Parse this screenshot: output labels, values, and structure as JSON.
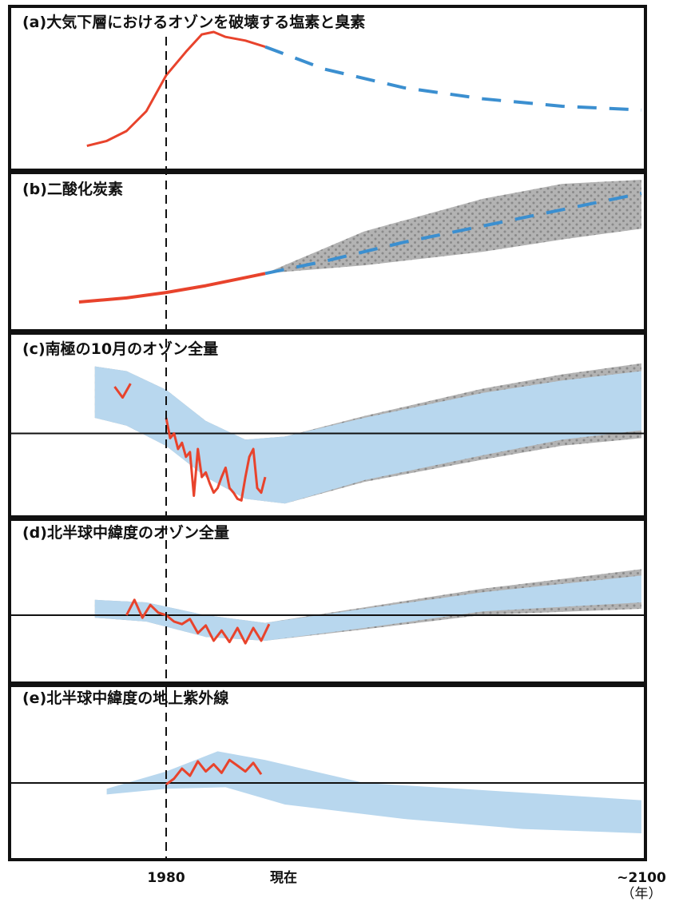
{
  "colors": {
    "observed": "#e8432c",
    "projection": "#3b8fd0",
    "band": "#b8d7ee",
    "uncertainty": "#b3b3b3",
    "uncertainty_dots": "#8a8a8a",
    "frame": "#111111"
  },
  "chart_data": {
    "type": "line",
    "x_markers": {
      "start": "1980",
      "present": "現在",
      "end": "~2100",
      "unit": "（年）"
    },
    "panels": [
      {
        "id": "a",
        "title": "(a)大気下層におけるオゾンを破壊する塩素と臭素",
        "observed": [
          [
            1960,
            0.08
          ],
          [
            1965,
            0.12
          ],
          [
            1970,
            0.2
          ],
          [
            1975,
            0.36
          ],
          [
            1980,
            0.65
          ],
          [
            1985,
            0.84
          ],
          [
            1989,
            0.98
          ],
          [
            1992,
            1.0
          ],
          [
            1995,
            0.96
          ],
          [
            2000,
            0.93
          ],
          [
            2005,
            0.88
          ]
        ],
        "projection": [
          [
            2005,
            0.88
          ],
          [
            2020,
            0.7
          ],
          [
            2040,
            0.55
          ],
          [
            2060,
            0.46
          ],
          [
            2080,
            0.4
          ],
          [
            2100,
            0.37
          ]
        ]
      },
      {
        "id": "b",
        "title": "(b)二酸化炭素",
        "observed": [
          [
            1958,
            0.1
          ],
          [
            1970,
            0.13
          ],
          [
            1980,
            0.17
          ],
          [
            1990,
            0.22
          ],
          [
            2000,
            0.28
          ],
          [
            2005,
            0.31
          ]
        ],
        "projection": [
          [
            2005,
            0.31
          ],
          [
            2020,
            0.4
          ],
          [
            2040,
            0.54
          ],
          [
            2060,
            0.66
          ],
          [
            2080,
            0.78
          ],
          [
            2100,
            0.9
          ]
        ],
        "uncertainty_upper": [
          [
            2005,
            0.31
          ],
          [
            2030,
            0.62
          ],
          [
            2060,
            0.86
          ],
          [
            2080,
            0.97
          ],
          [
            2100,
            1.0
          ]
        ],
        "uncertainty_lower": [
          [
            2005,
            0.31
          ],
          [
            2030,
            0.37
          ],
          [
            2060,
            0.47
          ],
          [
            2080,
            0.56
          ],
          [
            2100,
            0.64
          ]
        ]
      },
      {
        "id": "c",
        "title": "(c)南極の10月のオゾン全量",
        "baseline": 0.5,
        "observed_early": [
          [
            1967,
            0.8
          ],
          [
            1969,
            0.73
          ],
          [
            1971,
            0.82
          ]
        ],
        "observed": [
          [
            1980,
            0.6
          ],
          [
            1981,
            0.47
          ],
          [
            1982,
            0.5
          ],
          [
            1983,
            0.4
          ],
          [
            1984,
            0.44
          ],
          [
            1985,
            0.35
          ],
          [
            1986,
            0.38
          ],
          [
            1987,
            0.1
          ],
          [
            1988,
            0.4
          ],
          [
            1989,
            0.22
          ],
          [
            1990,
            0.25
          ],
          [
            1991,
            0.18
          ],
          [
            1992,
            0.12
          ],
          [
            1993,
            0.15
          ],
          [
            1994,
            0.22
          ],
          [
            1995,
            0.28
          ],
          [
            1996,
            0.15
          ],
          [
            1997,
            0.12
          ],
          [
            1998,
            0.08
          ],
          [
            1999,
            0.07
          ],
          [
            2000,
            0.22
          ],
          [
            2001,
            0.35
          ],
          [
            2002,
            0.4
          ],
          [
            2003,
            0.15
          ],
          [
            2004,
            0.12
          ],
          [
            2005,
            0.22
          ]
        ],
        "band_upper": [
          [
            1962,
            0.93
          ],
          [
            1970,
            0.9
          ],
          [
            1980,
            0.78
          ],
          [
            1990,
            0.58
          ],
          [
            2000,
            0.46
          ],
          [
            2010,
            0.48
          ],
          [
            2030,
            0.6
          ],
          [
            2060,
            0.76
          ],
          [
            2080,
            0.84
          ],
          [
            2100,
            0.9
          ]
        ],
        "band_lower": [
          [
            1962,
            0.6
          ],
          [
            1970,
            0.55
          ],
          [
            1980,
            0.42
          ],
          [
            1990,
            0.22
          ],
          [
            2000,
            0.08
          ],
          [
            2010,
            0.05
          ],
          [
            2030,
            0.2
          ],
          [
            2060,
            0.36
          ],
          [
            2080,
            0.46
          ],
          [
            2100,
            0.52
          ]
        ]
      },
      {
        "id": "d",
        "title": "(d)北半球中緯度のオゾン全量",
        "baseline": 0.5,
        "observed": [
          [
            1970,
            0.5
          ],
          [
            1972,
            0.62
          ],
          [
            1974,
            0.48
          ],
          [
            1976,
            0.58
          ],
          [
            1978,
            0.52
          ],
          [
            1980,
            0.5
          ],
          [
            1982,
            0.45
          ],
          [
            1984,
            0.43
          ],
          [
            1986,
            0.47
          ],
          [
            1988,
            0.36
          ],
          [
            1990,
            0.42
          ],
          [
            1992,
            0.3
          ],
          [
            1994,
            0.38
          ],
          [
            1996,
            0.29
          ],
          [
            1998,
            0.4
          ],
          [
            2000,
            0.28
          ],
          [
            2002,
            0.4
          ],
          [
            2004,
            0.3
          ],
          [
            2006,
            0.43
          ]
        ],
        "band_upper": [
          [
            1962,
            0.62
          ],
          [
            1975,
            0.6
          ],
          [
            1990,
            0.5
          ],
          [
            2005,
            0.44
          ],
          [
            2030,
            0.55
          ],
          [
            2060,
            0.68
          ],
          [
            2100,
            0.81
          ]
        ],
        "band_lower": [
          [
            1962,
            0.48
          ],
          [
            1975,
            0.45
          ],
          [
            1990,
            0.33
          ],
          [
            2005,
            0.3
          ],
          [
            2030,
            0.4
          ],
          [
            2060,
            0.53
          ],
          [
            2100,
            0.6
          ]
        ]
      },
      {
        "id": "e",
        "title": "(e)北半球中緯度の地上紫外線",
        "baseline": 0.5,
        "observed": [
          [
            1980,
            0.49
          ],
          [
            1982,
            0.53
          ],
          [
            1984,
            0.6
          ],
          [
            1986,
            0.55
          ],
          [
            1988,
            0.65
          ],
          [
            1990,
            0.58
          ],
          [
            1992,
            0.63
          ],
          [
            1994,
            0.57
          ],
          [
            1996,
            0.66
          ],
          [
            1998,
            0.62
          ],
          [
            2000,
            0.58
          ],
          [
            2002,
            0.64
          ],
          [
            2004,
            0.56
          ]
        ],
        "band_upper": [
          [
            1965,
            0.46
          ],
          [
            1980,
            0.58
          ],
          [
            1993,
            0.72
          ],
          [
            2005,
            0.66
          ],
          [
            2030,
            0.5
          ],
          [
            2060,
            0.45
          ],
          [
            2100,
            0.38
          ]
        ],
        "band_lower": [
          [
            1965,
            0.42
          ],
          [
            1980,
            0.46
          ],
          [
            1995,
            0.47
          ],
          [
            2010,
            0.35
          ],
          [
            2040,
            0.25
          ],
          [
            2070,
            0.18
          ],
          [
            2100,
            0.15
          ]
        ]
      }
    ]
  }
}
